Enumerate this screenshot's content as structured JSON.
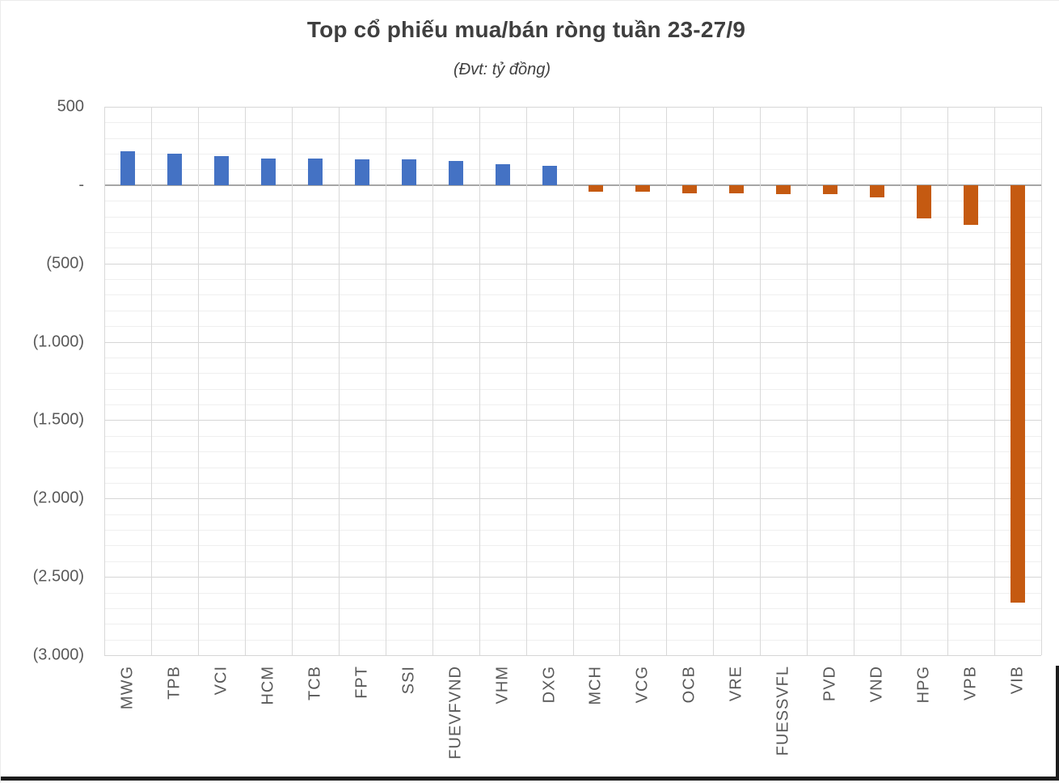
{
  "chart": {
    "title": "Top cổ phiếu mua/bán ròng tuần 23-27/9",
    "subtitle": "(Đvt: tỷ đồng)"
  },
  "chart_data": {
    "type": "bar",
    "title": "Top cổ phiếu mua/bán ròng tuần 23-27/9",
    "subtitle": "(Đvt: tỷ đồng)",
    "unit": "tỷ đồng",
    "categories": [
      "MWG",
      "TPB",
      "VCI",
      "HCM",
      "TCB",
      "FPT",
      "SSI",
      "FUEVFVND",
      "VHM",
      "DXG",
      "MCH",
      "VCG",
      "OCB",
      "VRE",
      "FUESSVFL",
      "PVD",
      "VND",
      "HPG",
      "VPB",
      "VIB"
    ],
    "values": [
      215,
      203,
      183,
      171,
      170,
      166,
      162,
      155,
      134,
      124,
      -40,
      -44,
      -54,
      -52,
      -56,
      -59,
      -79,
      -211,
      -254,
      -2665
    ],
    "positive_color": "#4472C4",
    "negative_color": "#C55A11",
    "ylim": [
      -3000,
      500
    ],
    "y_major_step": 500,
    "y_minor_step": 100,
    "y_ticks": [
      {
        "value": 500,
        "label": "500"
      },
      {
        "value": 0,
        "label": "-"
      },
      {
        "value": -500,
        "label": "(500)"
      },
      {
        "value": -1000,
        "label": "(1.000)"
      },
      {
        "value": -1500,
        "label": "(1.500)"
      },
      {
        "value": -2000,
        "label": "(2.000)"
      },
      {
        "value": -2500,
        "label": "(2.500)"
      },
      {
        "value": -3000,
        "label": "(3.000)"
      }
    ],
    "grid": {
      "horizontal_minor": true,
      "horizontal_major": true,
      "vertical_category_lines": true
    },
    "legend": "none",
    "colors": {
      "gridline_minor": "#efefef",
      "gridline_major": "#d6d6d6",
      "gridline_vertical": "#d9d9d9",
      "zero_line": "#a6a6a6",
      "axis_text": "#595959",
      "title_text": "#3f3f3f"
    }
  }
}
